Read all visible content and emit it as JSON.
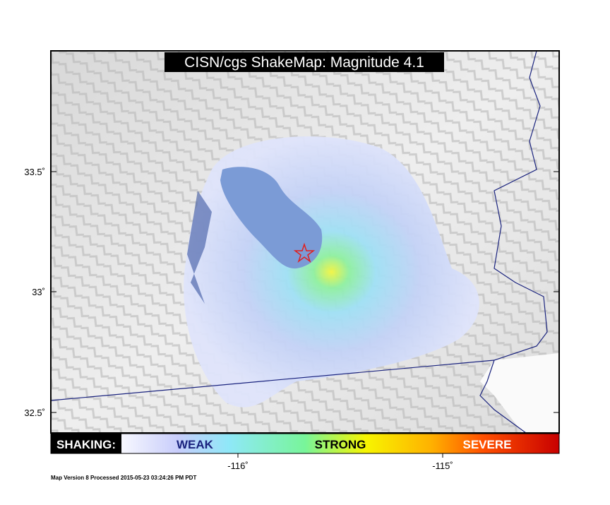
{
  "map": {
    "title": "CISN/cgs ShakeMap: Magnitude 4.1",
    "lat_ticks": [
      "33.5˚",
      "33˚",
      "32.5˚"
    ],
    "lon_ticks": [
      "-116˚",
      "-115˚"
    ],
    "legend": {
      "label": "SHAKING:",
      "weak": "WEAK",
      "strong": "STRONG",
      "severe": "SEVERE"
    },
    "footer": "Map Version 8 Processed 2015-05-23 03:24:26 PM PDT"
  }
}
